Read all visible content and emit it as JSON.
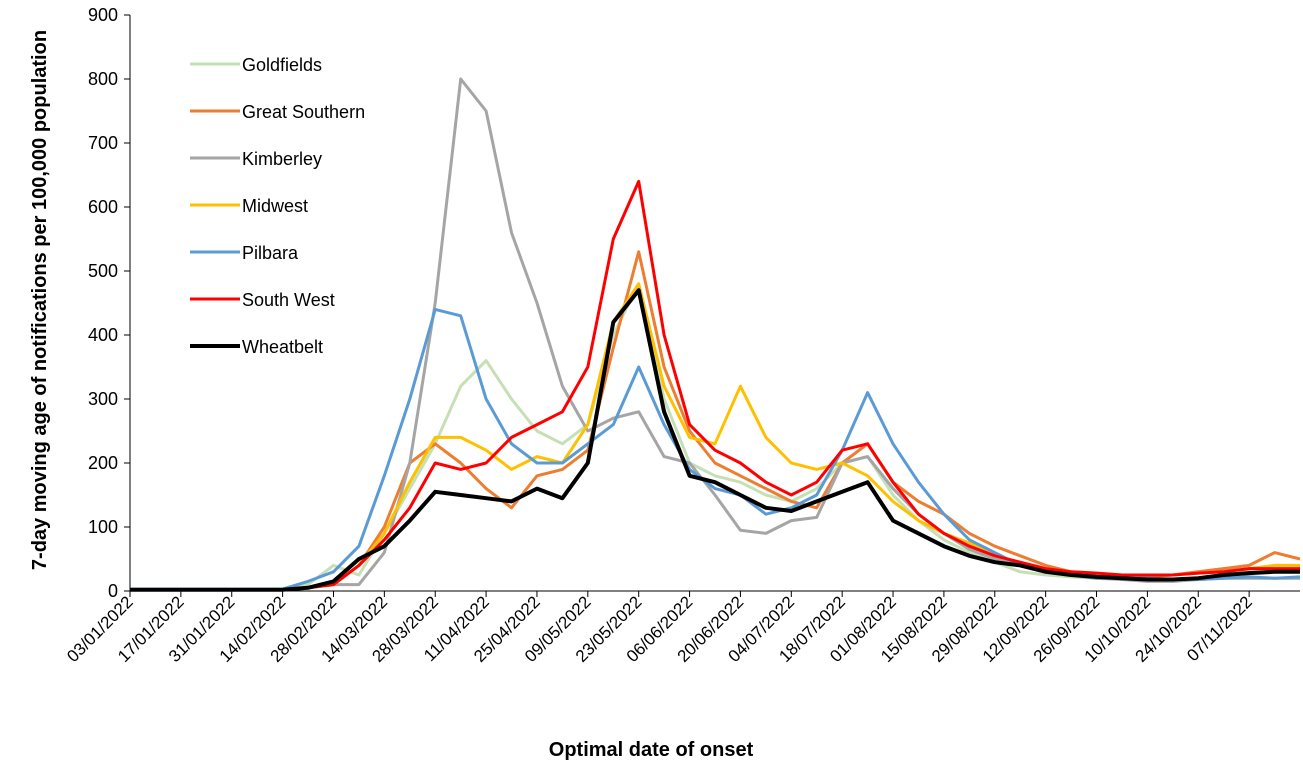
{
  "chart_data": {
    "type": "line",
    "x_label": "Optimal date of onset",
    "y_label": "7-day moving age of notifications per 100,000 population",
    "x": [
      "03/01/2022",
      "10/01/2022",
      "17/01/2022",
      "24/01/2022",
      "31/01/2022",
      "07/02/2022",
      "14/02/2022",
      "21/02/2022",
      "28/02/2022",
      "07/03/2022",
      "14/03/2022",
      "21/03/2022",
      "28/03/2022",
      "04/04/2022",
      "11/04/2022",
      "18/04/2022",
      "25/04/2022",
      "02/05/2022",
      "09/05/2022",
      "16/05/2022",
      "23/05/2022",
      "30/05/2022",
      "06/06/2022",
      "13/06/2022",
      "20/06/2022",
      "27/06/2022",
      "04/07/2022",
      "11/07/2022",
      "18/07/2022",
      "25/07/2022",
      "01/08/2022",
      "08/08/2022",
      "15/08/2022",
      "22/08/2022",
      "29/08/2022",
      "05/09/2022",
      "12/09/2022",
      "19/09/2022",
      "26/09/2022",
      "03/10/2022",
      "10/10/2022",
      "17/10/2022",
      "24/10/2022",
      "31/10/2022",
      "07/11/2022",
      "14/11/2022",
      "21/11/2022"
    ],
    "xlim": [
      "03/01/2022",
      "21/11/2022"
    ],
    "xticks": [
      "03/01/2022",
      "17/01/2022",
      "31/01/2022",
      "14/02/2022",
      "28/02/2022",
      "14/03/2022",
      "28/03/2022",
      "11/04/2022",
      "25/04/2022",
      "09/05/2022",
      "23/05/2022",
      "06/06/2022",
      "20/06/2022",
      "04/07/2022",
      "18/07/2022",
      "01/08/2022",
      "15/08/2022",
      "29/08/2022",
      "12/09/2022",
      "26/09/2022",
      "10/10/2022",
      "24/10/2022",
      "07/11/2022"
    ],
    "ylim": [
      0,
      900
    ],
    "yticks": [
      0,
      100,
      200,
      300,
      400,
      500,
      600,
      700,
      800,
      900
    ],
    "grid": false,
    "legend": "upper left",
    "series": [
      {
        "name": "Goldfields",
        "color": "#c5e0b4",
        "values": [
          2,
          2,
          2,
          2,
          2,
          2,
          2,
          10,
          40,
          25,
          90,
          160,
          230,
          320,
          360,
          300,
          250,
          230,
          260,
          400,
          480,
          300,
          200,
          180,
          170,
          150,
          140,
          160,
          200,
          210,
          150,
          110,
          80,
          60,
          45,
          30,
          25,
          22,
          20,
          20,
          22,
          25,
          30,
          35,
          30,
          30,
          30
        ]
      },
      {
        "name": "Great Southern",
        "color": "#ed7d31",
        "values": [
          2,
          2,
          2,
          2,
          2,
          2,
          2,
          5,
          10,
          40,
          100,
          200,
          230,
          200,
          160,
          130,
          180,
          190,
          220,
          380,
          530,
          350,
          250,
          200,
          180,
          160,
          140,
          130,
          200,
          230,
          170,
          140,
          120,
          90,
          70,
          55,
          40,
          30,
          25,
          22,
          22,
          25,
          30,
          35,
          40,
          60,
          50
        ]
      },
      {
        "name": "Kimberley",
        "color": "#a5a5a5",
        "values": [
          2,
          2,
          2,
          2,
          2,
          2,
          2,
          5,
          10,
          10,
          60,
          200,
          450,
          800,
          750,
          560,
          450,
          320,
          250,
          270,
          280,
          210,
          200,
          150,
          95,
          90,
          110,
          115,
          200,
          210,
          160,
          120,
          90,
          65,
          50,
          40,
          30,
          25,
          20,
          18,
          15,
          15,
          18,
          20,
          20,
          20,
          20
        ]
      },
      {
        "name": "Midwest",
        "color": "#ffc000",
        "values": [
          2,
          2,
          2,
          2,
          2,
          2,
          2,
          5,
          10,
          40,
          90,
          170,
          240,
          240,
          220,
          190,
          210,
          200,
          260,
          420,
          480,
          320,
          240,
          230,
          320,
          240,
          200,
          190,
          200,
          180,
          140,
          110,
          90,
          75,
          55,
          45,
          35,
          30,
          28,
          25,
          25,
          25,
          28,
          30,
          35,
          40,
          40
        ]
      },
      {
        "name": "Pilbara",
        "color": "#5b9bd5",
        "values": [
          3,
          3,
          3,
          3,
          3,
          3,
          3,
          15,
          30,
          70,
          180,
          300,
          440,
          430,
          300,
          230,
          200,
          200,
          230,
          260,
          350,
          260,
          190,
          160,
          150,
          120,
          130,
          150,
          220,
          310,
          230,
          170,
          120,
          80,
          60,
          40,
          30,
          25,
          20,
          20,
          20,
          18,
          18,
          20,
          22,
          20,
          22
        ]
      },
      {
        "name": "South West",
        "color": "#ff0000",
        "values": [
          2,
          2,
          2,
          2,
          2,
          2,
          2,
          5,
          10,
          40,
          80,
          130,
          200,
          190,
          200,
          240,
          260,
          280,
          350,
          550,
          640,
          400,
          260,
          220,
          200,
          170,
          150,
          170,
          220,
          230,
          170,
          120,
          90,
          70,
          55,
          45,
          35,
          30,
          28,
          25,
          25,
          25,
          28,
          30,
          35,
          35,
          35
        ]
      },
      {
        "name": "Wheatbelt",
        "color": "#000000",
        "values": [
          2,
          2,
          2,
          2,
          2,
          2,
          2,
          5,
          15,
          50,
          70,
          110,
          155,
          150,
          145,
          140,
          160,
          145,
          200,
          420,
          470,
          280,
          180,
          170,
          150,
          130,
          125,
          140,
          155,
          170,
          110,
          90,
          70,
          55,
          45,
          40,
          30,
          25,
          22,
          20,
          18,
          18,
          20,
          25,
          28,
          30,
          30
        ]
      }
    ]
  }
}
